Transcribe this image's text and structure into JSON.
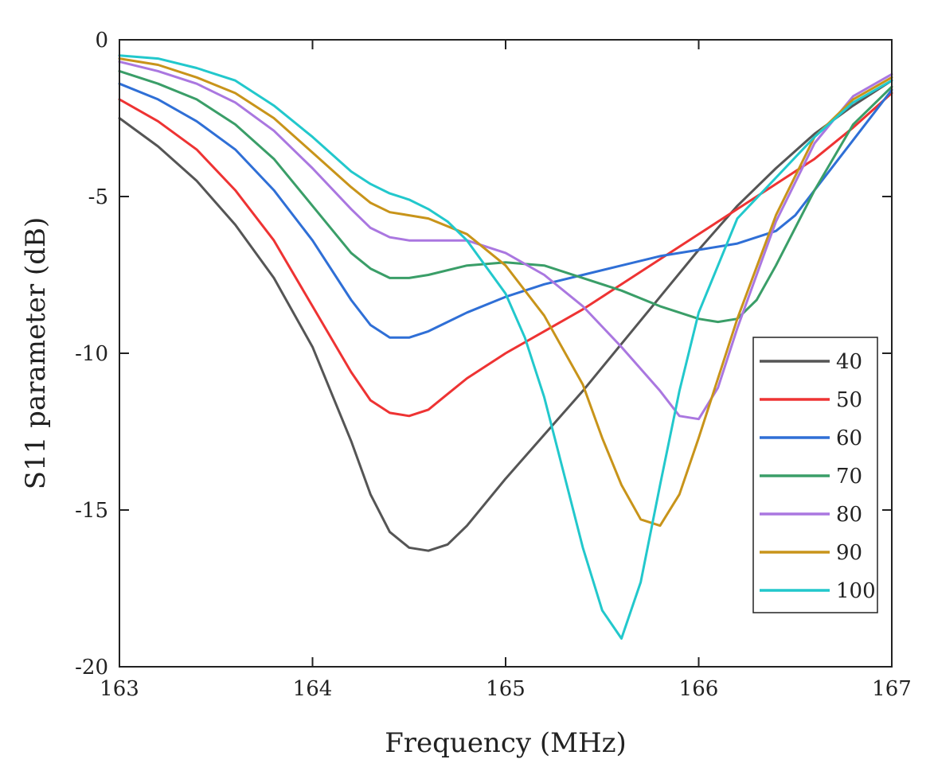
{
  "chart_data": {
    "type": "line",
    "title": "",
    "xlabel": "Frequency (MHz)",
    "ylabel": "S11 parameter (dB)",
    "xlim": [
      163,
      167
    ],
    "ylim": [
      -20,
      0
    ],
    "xticks": [
      163,
      164,
      165,
      166,
      167
    ],
    "xtick_labels": [
      "163",
      "164",
      "165",
      "166",
      "167"
    ],
    "yticks": [
      0,
      -5,
      -10,
      -15,
      -20
    ],
    "ytick_labels": [
      "0",
      "-5",
      "-10",
      "-15",
      "-20"
    ],
    "grid": false,
    "legend_position": "right",
    "series": [
      {
        "name": "40",
        "color": "#555555",
        "x": [
          163.0,
          163.2,
          163.4,
          163.6,
          163.8,
          164.0,
          164.2,
          164.3,
          164.4,
          164.5,
          164.6,
          164.7,
          164.8,
          165.0,
          165.2,
          165.4,
          165.6,
          165.8,
          166.0,
          166.2,
          166.4,
          166.6,
          166.8,
          167.0
        ],
        "y": [
          -2.5,
          -3.4,
          -4.5,
          -5.9,
          -7.6,
          -9.8,
          -12.8,
          -14.5,
          -15.7,
          -16.2,
          -16.3,
          -16.1,
          -15.5,
          -14.0,
          -12.6,
          -11.2,
          -9.7,
          -8.2,
          -6.7,
          -5.3,
          -4.1,
          -3.0,
          -2.1,
          -1.3
        ]
      },
      {
        "name": "50",
        "color": "#ee3333",
        "x": [
          163.0,
          163.2,
          163.4,
          163.6,
          163.8,
          164.0,
          164.2,
          164.3,
          164.4,
          164.5,
          164.6,
          164.7,
          164.8,
          165.0,
          165.2,
          165.4,
          165.6,
          165.8,
          166.0,
          166.2,
          166.4,
          166.6,
          166.8,
          167.0
        ],
        "y": [
          -1.9,
          -2.6,
          -3.5,
          -4.8,
          -6.4,
          -8.5,
          -10.6,
          -11.5,
          -11.9,
          -12.0,
          -11.8,
          -11.3,
          -10.8,
          -10.0,
          -9.3,
          -8.6,
          -7.8,
          -7.0,
          -6.2,
          -5.4,
          -4.6,
          -3.8,
          -2.8,
          -1.7
        ]
      },
      {
        "name": "60",
        "color": "#2f6fd6",
        "x": [
          163.0,
          163.2,
          163.4,
          163.6,
          163.8,
          164.0,
          164.2,
          164.3,
          164.4,
          164.5,
          164.6,
          164.7,
          164.8,
          165.0,
          165.2,
          165.4,
          165.6,
          165.8,
          166.0,
          166.2,
          166.4,
          166.5,
          166.6,
          166.8,
          167.0
        ],
        "y": [
          -1.4,
          -1.9,
          -2.6,
          -3.5,
          -4.8,
          -6.4,
          -8.3,
          -9.1,
          -9.5,
          -9.5,
          -9.3,
          -9.0,
          -8.7,
          -8.2,
          -7.8,
          -7.5,
          -7.2,
          -6.9,
          -6.7,
          -6.5,
          -6.1,
          -5.6,
          -4.8,
          -3.2,
          -1.6
        ]
      },
      {
        "name": "70",
        "color": "#3a9e68",
        "x": [
          163.0,
          163.2,
          163.4,
          163.6,
          163.8,
          164.0,
          164.2,
          164.3,
          164.4,
          164.5,
          164.6,
          164.8,
          165.0,
          165.2,
          165.4,
          165.6,
          165.8,
          166.0,
          166.1,
          166.2,
          166.3,
          166.4,
          166.6,
          166.8,
          167.0
        ],
        "y": [
          -1.0,
          -1.4,
          -1.9,
          -2.7,
          -3.8,
          -5.3,
          -6.8,
          -7.3,
          -7.6,
          -7.6,
          -7.5,
          -7.2,
          -7.1,
          -7.2,
          -7.6,
          -8.0,
          -8.5,
          -8.9,
          -9.0,
          -8.9,
          -8.3,
          -7.2,
          -4.8,
          -2.7,
          -1.5
        ]
      },
      {
        "name": "80",
        "color": "#aa77e0",
        "x": [
          163.0,
          163.2,
          163.4,
          163.6,
          163.8,
          164.0,
          164.2,
          164.3,
          164.4,
          164.5,
          164.6,
          164.8,
          165.0,
          165.2,
          165.4,
          165.6,
          165.8,
          165.9,
          166.0,
          166.1,
          166.2,
          166.4,
          166.6,
          166.8,
          167.0
        ],
        "y": [
          -0.7,
          -1.0,
          -1.4,
          -2.0,
          -2.9,
          -4.1,
          -5.4,
          -6.0,
          -6.3,
          -6.4,
          -6.4,
          -6.4,
          -6.8,
          -7.5,
          -8.5,
          -9.8,
          -11.2,
          -12.0,
          -12.1,
          -11.1,
          -9.2,
          -5.8,
          -3.3,
          -1.8,
          -1.1
        ]
      },
      {
        "name": "90",
        "color": "#c8941a",
        "x": [
          163.0,
          163.2,
          163.4,
          163.6,
          163.8,
          164.0,
          164.2,
          164.3,
          164.4,
          164.5,
          164.6,
          164.8,
          165.0,
          165.2,
          165.4,
          165.5,
          165.6,
          165.7,
          165.8,
          165.9,
          166.0,
          166.2,
          166.4,
          166.6,
          166.8,
          167.0
        ],
        "y": [
          -0.6,
          -0.8,
          -1.2,
          -1.7,
          -2.5,
          -3.6,
          -4.7,
          -5.2,
          -5.5,
          -5.6,
          -5.7,
          -6.2,
          -7.2,
          -8.8,
          -11.0,
          -12.7,
          -14.2,
          -15.3,
          -15.5,
          -14.5,
          -12.7,
          -8.9,
          -5.6,
          -3.1,
          -1.9,
          -1.2
        ]
      },
      {
        "name": "100",
        "color": "#22c8cc",
        "x": [
          163.0,
          163.2,
          163.4,
          163.6,
          163.8,
          164.0,
          164.2,
          164.3,
          164.4,
          164.5,
          164.6,
          164.7,
          164.8,
          165.0,
          165.1,
          165.2,
          165.3,
          165.4,
          165.5,
          165.6,
          165.7,
          165.8,
          165.9,
          166.0,
          166.2,
          166.4,
          166.6,
          166.8,
          167.0
        ],
        "y": [
          -0.5,
          -0.6,
          -0.9,
          -1.3,
          -2.1,
          -3.1,
          -4.2,
          -4.6,
          -4.9,
          -5.1,
          -5.4,
          -5.8,
          -6.4,
          -8.1,
          -9.5,
          -11.4,
          -13.8,
          -16.2,
          -18.2,
          -19.1,
          -17.3,
          -14.2,
          -11.2,
          -8.7,
          -5.7,
          -4.4,
          -3.1,
          -2.0,
          -1.3
        ]
      }
    ]
  }
}
